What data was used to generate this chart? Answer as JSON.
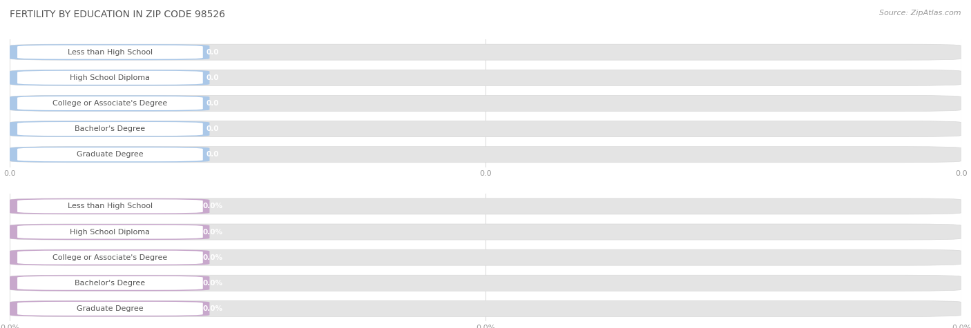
{
  "title": "FERTILITY BY EDUCATION IN ZIP CODE 98526",
  "source_text": "Source: ZipAtlas.com",
  "categories": [
    "Less than High School",
    "High School Diploma",
    "College or Associate's Degree",
    "Bachelor's Degree",
    "Graduate Degree"
  ],
  "top_values": [
    0.0,
    0.0,
    0.0,
    0.0,
    0.0
  ],
  "bottom_values": [
    0.0,
    0.0,
    0.0,
    0.0,
    0.0
  ],
  "top_bar_color": "#abc8e8",
  "bottom_bar_color": "#c8a8cc",
  "bar_bg_color": "#e4e4e4",
  "bar_bg_outer_color": "#ebebeb",
  "top_tick_labels": [
    "0.0",
    "0.0",
    "0.0"
  ],
  "bottom_tick_labels": [
    "0.0%",
    "0.0%",
    "0.0%"
  ],
  "background_color": "#ffffff",
  "title_color": "#555555",
  "title_fontsize": 10,
  "label_fontsize": 8,
  "value_fontsize": 7.5,
  "source_fontsize": 8,
  "tick_fontsize": 8,
  "tick_color": "#999999",
  "grid_color": "#dddddd",
  "label_text_color": "#555555",
  "value_text_color": "#cccccc"
}
